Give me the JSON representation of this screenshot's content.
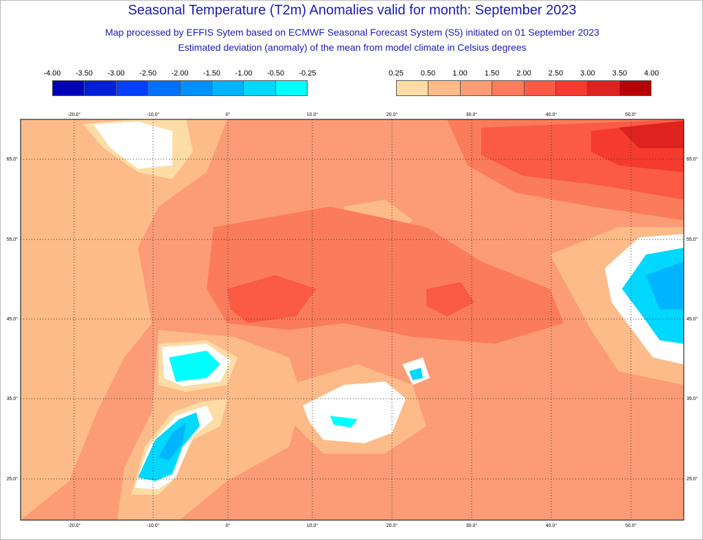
{
  "title": "Seasonal Temperature (T2m) Anomalies valid for month: September 2023",
  "subtitle1": "Map processed by EFFIS Sytem based on ECMWF Seasonal Forecast System (S5) initiated on 01 September 2023",
  "subtitle2": "Estimated deviation (anomaly) of the mean from model climate in Celsius degrees",
  "legend_negative": {
    "labels": [
      "-4.00",
      "-3.50",
      "-3.00",
      "-2.50",
      "-2.00",
      "-1.50",
      "-1.00",
      "-0.50",
      "-0.25"
    ],
    "colors": [
      "#0000b4",
      "#0020d8",
      "#0040ff",
      "#0070ff",
      "#0090ff",
      "#00b4ff",
      "#00d8ff",
      "#00ffff"
    ]
  },
  "legend_positive": {
    "labels": [
      "0.25",
      "0.50",
      "1.00",
      "1.50",
      "2.00",
      "2.50",
      "3.00",
      "3.50",
      "4.00"
    ],
    "colors": [
      "#fddca5",
      "#fdbb8a",
      "#fc9c76",
      "#fb7c5c",
      "#fb5a44",
      "#f53a2f",
      "#dd2220",
      "#b40004"
    ]
  },
  "map": {
    "lon_labels": [
      "-20.0°",
      "-10.0°",
      "0°",
      "10.0°",
      "20.0°",
      "30.0°",
      "40.0°",
      "50.0°"
    ],
    "lat_labels": [
      "65.0°",
      "55.0°",
      "45.0°",
      "35.0°",
      "25.0°"
    ]
  }
}
